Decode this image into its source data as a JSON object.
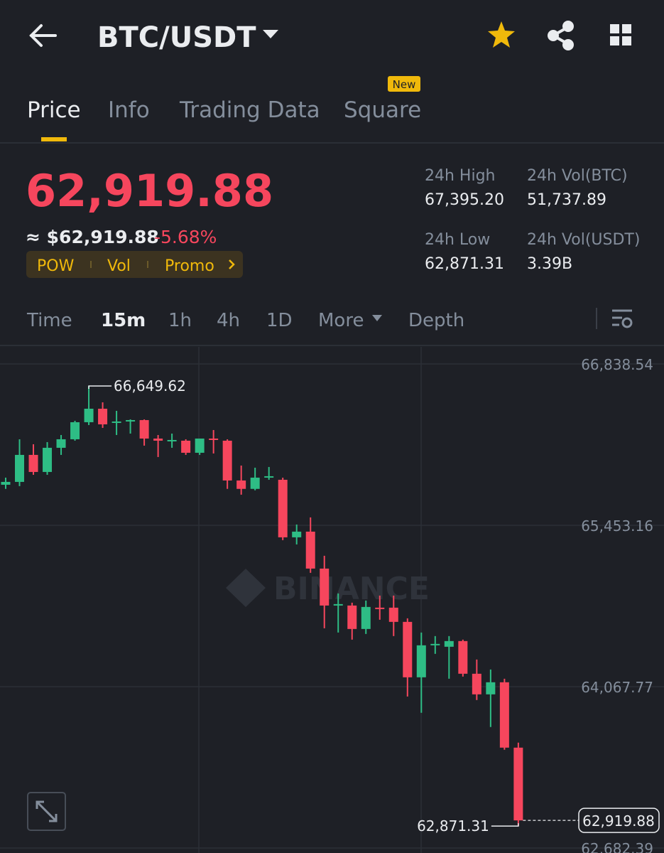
{
  "header": {
    "pair": "BTC/USDT"
  },
  "tabs": [
    "Price",
    "Info",
    "Trading Data",
    "Square"
  ],
  "new_badge": "New",
  "price": {
    "last": "62,919.88",
    "fiat": "≈ $62,919.88",
    "change": "-5.68%",
    "tags": [
      "POW",
      "Vol",
      "Promo"
    ]
  },
  "stats": [
    {
      "label": "24h High",
      "value": "67,395.20"
    },
    {
      "label": "24h Vol(BTC)",
      "value": "51,737.89"
    },
    {
      "label": "24h Low",
      "value": "62,871.31"
    },
    {
      "label": "24h Vol(USDT)",
      "value": "3.39B"
    }
  ],
  "intervals": [
    "Time",
    "15m",
    "1h",
    "4h",
    "1D",
    "More",
    "Depth"
  ],
  "watermark": "BINANCE",
  "chart_data": {
    "type": "candlestick",
    "up_color": "#2ebd85",
    "down_color": "#f6465d",
    "ylim": [
      62640,
      66985
    ],
    "yticks": [
      {
        "value": 66838.54,
        "label": "66,838.54"
      },
      {
        "value": 65453.16,
        "label": "65,453.16"
      },
      {
        "value": 64067.77,
        "label": "64,067.77"
      },
      {
        "value": 62682.39,
        "label": "62,682.39"
      }
    ],
    "grid": true,
    "open": [
      65801.5,
      65825.9,
      66057.7,
      65911.3,
      66118.7,
      66191.9,
      66338.3,
      66454.2,
      66332.2,
      66344.4,
      66356.6,
      66198.0,
      66173.6,
      66179.7,
      66076.0,
      66198.0,
      66179.7,
      65838.1,
      65765.9,
      65862.5,
      65844.2,
      65350.1,
      65398.9,
      65081.7,
      64764.5,
      64764.5,
      64563.2,
      64746.2,
      64746.2,
      64624.2,
      64148.4,
      64422.9,
      64410.7,
      64459.5,
      64178.9,
      64002.0,
      64105.7,
      63544.5
    ],
    "high": [
      65862.5,
      66191.9,
      66149.2,
      66167.5,
      66228.5,
      66350.5,
      66649.62,
      66509.1,
      66435.9,
      66362.7,
      66362.7,
      66228.5,
      66240.7,
      66191.9,
      66198.0,
      66271.2,
      66191.9,
      65966.2,
      65947.9,
      65954.0,
      65862.5,
      65460.0,
      65520.9,
      65191.5,
      64868.2,
      64788.9,
      64807.2,
      64849.9,
      64849.9,
      64654.7,
      64532.7,
      64502.2,
      64502.2,
      64471.7,
      64300.9,
      64215.5,
      64136.2,
      63587.2
    ],
    "low": [
      65765.9,
      65789.3,
      65886.9,
      65886.9,
      66057.7,
      66179.7,
      66313.9,
      66289.5,
      66228.5,
      66240.7,
      66137.0,
      66039.4,
      66118.7,
      66057.7,
      66057.7,
      66069.9,
      65765.9,
      65716.1,
      65753.7,
      65844.2,
      65325.7,
      65289.1,
      65045.1,
      64569.3,
      64532.7,
      64471.7,
      64520.5,
      64642.5,
      64502.2,
      63983.7,
      63843.4,
      64349.7,
      64136.2,
      64154.5,
      63953.2,
      63721.4,
      63526.2,
      62871.31
    ],
    "close": [
      65825.9,
      66057.7,
      65911.3,
      66118.7,
      66191.9,
      66338.3,
      66454.2,
      66320.0,
      66344.4,
      66356.6,
      66198.0,
      66179.7,
      66185.8,
      66076.0,
      66198.0,
      66185.8,
      65838.1,
      65765.9,
      65862.5,
      65874.7,
      65350.1,
      65398.9,
      65081.7,
      64764.5,
      64776.7,
      64563.2,
      64752.3,
      64734.0,
      64624.2,
      64148.4,
      64422.9,
      64435.1,
      64459.5,
      64178.9,
      64002.0,
      64105.7,
      63544.5,
      62919.88
    ],
    "max_label": "66,649.62",
    "min_label": "62,871.31",
    "last_label": "62,919.88"
  }
}
